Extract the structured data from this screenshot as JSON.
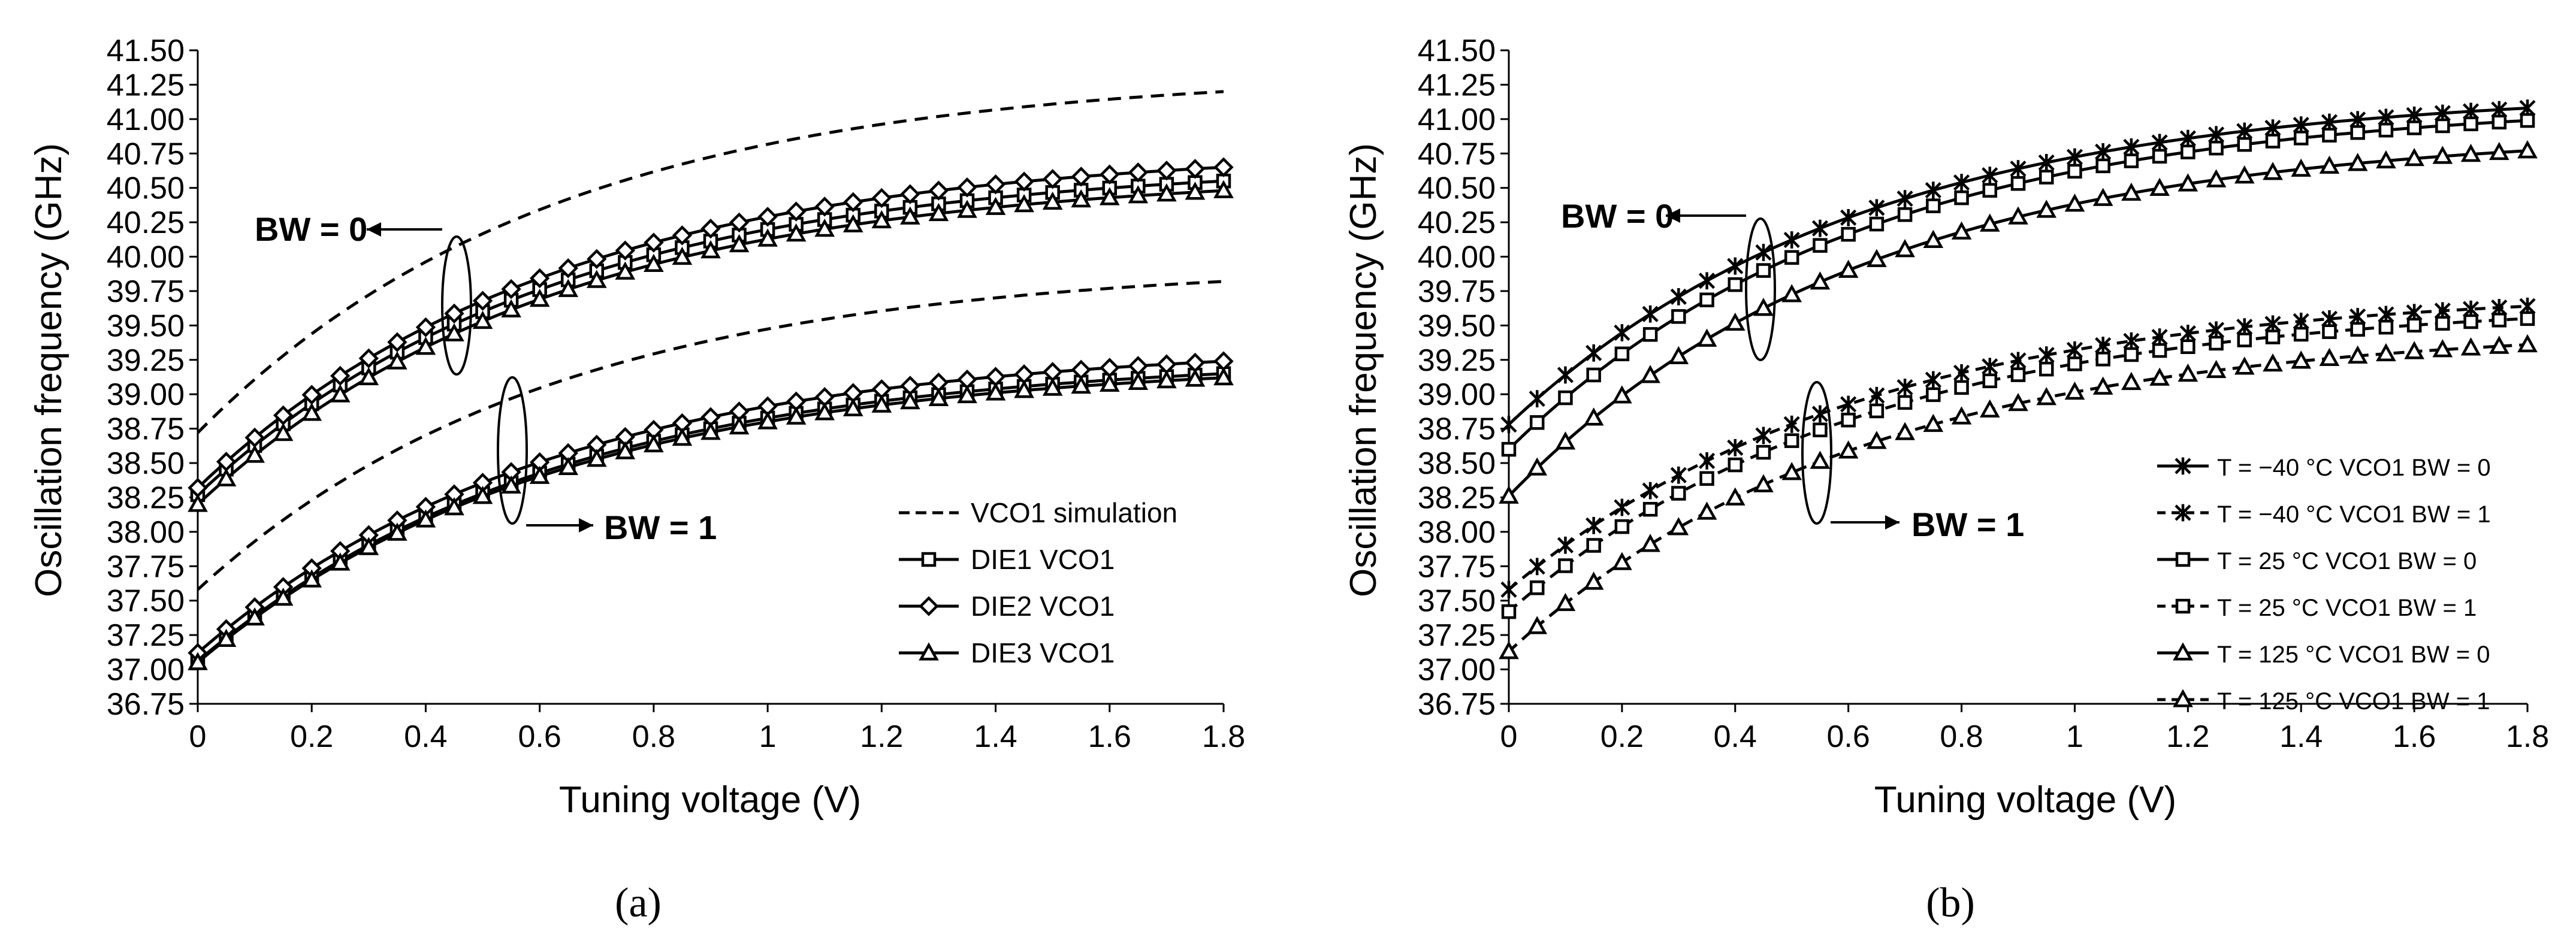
{
  "colors": {
    "ink": "#000000",
    "background": "#ffffff",
    "grid": "#d9d9d9"
  },
  "panels": [
    {
      "id": "a",
      "caption": "(a)",
      "annotations": {
        "bw0": "BW = 0",
        "bw1": "BW = 1"
      }
    },
    {
      "id": "b",
      "caption": "(b)",
      "annotations": {
        "bw0": "BW = 0",
        "bw1": "BW = 1"
      }
    }
  ],
  "chart_data": [
    {
      "type": "line",
      "title": "",
      "xlabel": "Tuning voltage (V)",
      "ylabel": "Oscillation frequency (GHz)",
      "xlim": [
        0,
        1.8
      ],
      "ylim": [
        36.75,
        41.5
      ],
      "x_ticks": [
        "0",
        "0.2",
        "0.4",
        "0.6",
        "0.8",
        "1",
        "1.2",
        "1.4",
        "1.6",
        "1.8"
      ],
      "y_ticks": [
        "36.75",
        "37.00",
        "37.25",
        "37.50",
        "37.75",
        "38.00",
        "38.25",
        "38.50",
        "38.75",
        "39.00",
        "39.25",
        "39.50",
        "39.75",
        "40.00",
        "40.25",
        "40.50",
        "40.75",
        "41.00",
        "41.25",
        "41.50"
      ],
      "grid": false,
      "legend": "center-right",
      "series": [
        {
          "name": "VCO1 simulation",
          "group": "BW = 0",
          "marker": "none",
          "dash": "dashed",
          "y0": 38.72,
          "y1": 41.2,
          "k": 1.6,
          "markers": false
        },
        {
          "name": "VCO1 simulation",
          "group": "BW = 1",
          "marker": "none",
          "dash": "dashed",
          "y0": 37.58,
          "y1": 39.82,
          "k": 1.6,
          "markers": false
        },
        {
          "name": "DIE1 VCO1",
          "group": "BW = 0",
          "marker": "square",
          "dash": "solid",
          "y0": 38.27,
          "y1": 40.55,
          "k": 1.6
        },
        {
          "name": "DIE1 VCO1",
          "group": "BW = 1",
          "marker": "square",
          "dash": "solid",
          "y0": 37.06,
          "y1": 39.15,
          "k": 1.6
        },
        {
          "name": "DIE2 VCO1",
          "group": "BW = 0",
          "marker": "diamond",
          "dash": "solid",
          "y0": 38.32,
          "y1": 40.65,
          "k": 1.6
        },
        {
          "name": "DIE2 VCO1",
          "group": "BW = 1",
          "marker": "diamond",
          "dash": "solid",
          "y0": 37.12,
          "y1": 39.24,
          "k": 1.6
        },
        {
          "name": "DIE3 VCO1",
          "group": "BW = 0",
          "marker": "triangle",
          "dash": "solid",
          "y0": 38.2,
          "y1": 40.48,
          "k": 1.6
        },
        {
          "name": "DIE3 VCO1",
          "group": "BW = 1",
          "marker": "triangle",
          "dash": "solid",
          "y0": 37.05,
          "y1": 39.12,
          "k": 1.6
        }
      ],
      "legend_entries": [
        "VCO1 simulation",
        "DIE1 VCO1",
        "DIE2 VCO1",
        "DIE3 VCO1"
      ]
    },
    {
      "type": "line",
      "title": "",
      "xlabel": "Tuning voltage (V)",
      "ylabel": "Oscillation frequency (GHz)",
      "xlim": [
        0,
        1.8
      ],
      "ylim": [
        36.75,
        41.5
      ],
      "x_ticks": [
        "0",
        "0.2",
        "0.4",
        "0.6",
        "0.8",
        "1",
        "1.2",
        "1.4",
        "1.6",
        "1.8"
      ],
      "y_ticks": [
        "36.75",
        "37.00",
        "37.25",
        "37.50",
        "37.75",
        "38.00",
        "38.25",
        "38.50",
        "38.75",
        "39.00",
        "39.25",
        "39.50",
        "39.75",
        "40.00",
        "40.25",
        "40.50",
        "40.75",
        "41.00",
        "41.25",
        "41.50"
      ],
      "grid": false,
      "legend": "bottom-right",
      "series": [
        {
          "name": "T = −40 °C VCO1 BW = 0",
          "marker": "star",
          "dash": "solid",
          "y0": 38.78,
          "y1": 41.08,
          "k": 1.6
        },
        {
          "name": "T = −40 °C VCO1 BW = 1",
          "marker": "star",
          "dash": "dashed",
          "y0": 37.58,
          "y1": 39.64,
          "k": 1.6
        },
        {
          "name": "T = 25 °C VCO1 BW = 0",
          "marker": "square",
          "dash": "solid",
          "y0": 38.6,
          "y1": 40.99,
          "k": 1.6
        },
        {
          "name": "T = 25 °C VCO1 BW = 1",
          "marker": "square",
          "dash": "dashed",
          "y0": 37.42,
          "y1": 39.55,
          "k": 1.6
        },
        {
          "name": "T = 125 °C VCO1 BW = 0",
          "marker": "triangle",
          "dash": "solid",
          "y0": 38.26,
          "y1": 40.77,
          "k": 1.6
        },
        {
          "name": "T = 125 °C VCO1 BW = 1",
          "marker": "triangle",
          "dash": "dashed",
          "y0": 37.13,
          "y1": 39.36,
          "k": 1.6
        }
      ],
      "legend_entries": [
        "T = −40 °C VCO1 BW = 0",
        "T = −40 °C VCO1 BW = 1",
        "T = 25 °C VCO1 BW = 0",
        "T = 25 °C VCO1 BW = 1",
        "T = 125 °C VCO1 BW = 0",
        "T = 125 °C VCO1 BW = 1"
      ]
    }
  ]
}
